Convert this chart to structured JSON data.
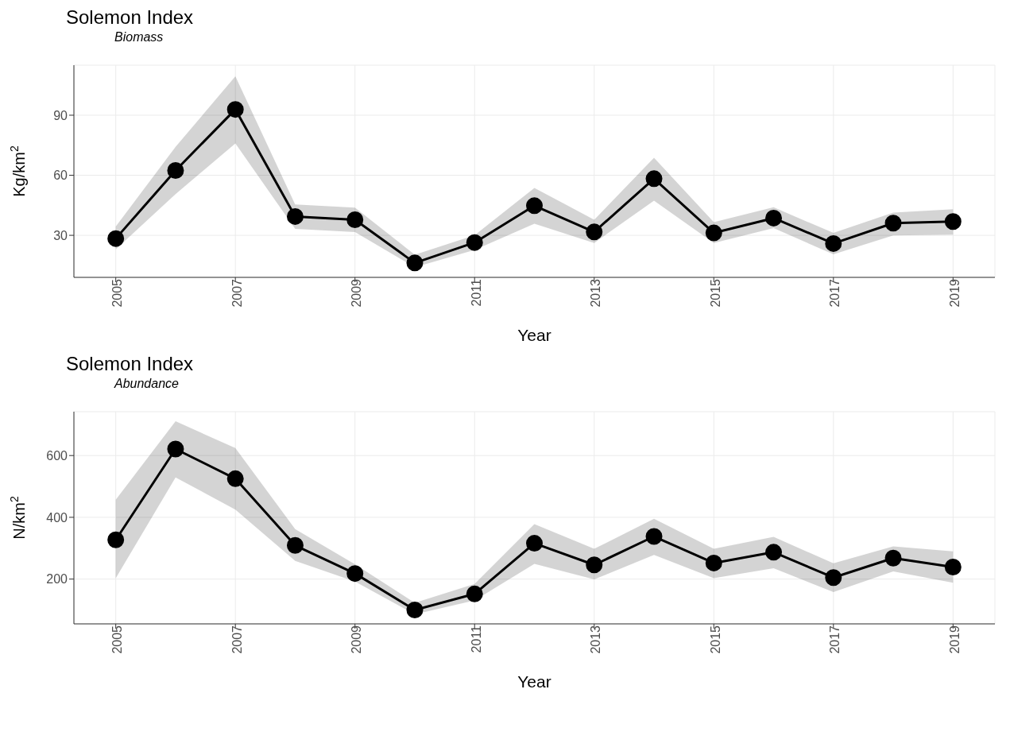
{
  "chart_data": [
    {
      "type": "line",
      "title": "Solemon Index",
      "subtitle": "Biomass",
      "xlabel": "Year",
      "ylabel": "Kg/km$^{2}$",
      "x": [
        2005,
        2006,
        2007,
        2008,
        2009,
        2010,
        2011,
        2012,
        2013,
        2014,
        2015,
        2016,
        2017,
        2018,
        2019
      ],
      "series": [
        {
          "color": "#000000",
          "values": [
            28.4,
            62.4,
            92.9,
            39.4,
            37.8,
            16.2,
            26.4,
            44.8,
            31.7,
            58.3,
            31.2,
            38.6,
            25.9,
            36.1,
            36.9
          ],
          "lower": [
            23,
            50.6,
            75.9,
            33.2,
            31.6,
            14.1,
            22.7,
            35.8,
            26.2,
            47.3,
            26.2,
            33.6,
            20.5,
            29.9,
            30.3
          ],
          "upper": [
            34.4,
            74.2,
            109.4,
            45.4,
            43.8,
            20.3,
            30,
            53.7,
            37.8,
            68.7,
            36.6,
            44,
            31.2,
            41.4,
            43
          ]
        }
      ],
      "xlim": [
        2004.3,
        2019.7
      ],
      "xticks": [
        2005,
        2007,
        2009,
        2011,
        2013,
        2015,
        2017,
        2019
      ],
      "ylim": [
        9,
        115
      ],
      "yticks": [
        30,
        60,
        90
      ],
      "grid": true,
      "marker": "circle",
      "line_style": "solid",
      "legend": false
    },
    {
      "type": "line",
      "title": "Solemon Index",
      "subtitle": "Abundance",
      "xlabel": "Year",
      "ylabel": "N/km$^{2}$",
      "x": [
        2005,
        2006,
        2007,
        2008,
        2009,
        2010,
        2011,
        2012,
        2013,
        2014,
        2015,
        2016,
        2017,
        2018,
        2019
      ],
      "series": [
        {
          "color": "#000000",
          "values": [
            327,
            621,
            525,
            309,
            218,
            100,
            152,
            316,
            246,
            338,
            252,
            287,
            205,
            268,
            239
          ],
          "lower": [
            203,
            529,
            425,
            259,
            192,
            86,
            131,
            249,
            199,
            278,
            203,
            235,
            158,
            225,
            188
          ],
          "upper": [
            457,
            711,
            624,
            362,
            248,
            123,
            184,
            378,
            298,
            395,
            298,
            337,
            251,
            306,
            290
          ]
        }
      ],
      "xlim": [
        2004.3,
        2019.7
      ],
      "xticks": [
        2005,
        2007,
        2009,
        2011,
        2013,
        2015,
        2017,
        2019
      ],
      "ylim": [
        55,
        742
      ],
      "yticks": [
        200,
        400,
        600
      ],
      "grid": true,
      "marker": "circle",
      "line_style": "solid",
      "legend": false
    }
  ]
}
